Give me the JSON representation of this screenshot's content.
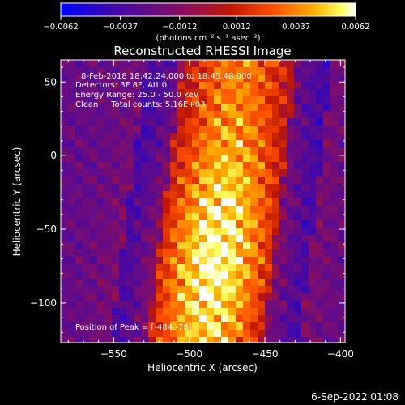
{
  "chart_data": {
    "type": "heatmap",
    "title": "Reconstructed RHESSI Image",
    "xlabel": "Heliocentric X (arcsec)",
    "ylabel": "Heliocentric Y (arcsec)",
    "xlim": [
      -585,
      -397
    ],
    "ylim": [
      -127,
      65
    ],
    "x_ticks": [
      -550,
      -500,
      -450,
      -400
    ],
    "x_tick_labels": [
      "−550",
      "−500",
      "−450",
      "−400"
    ],
    "y_ticks": [
      50,
      0,
      -50,
      -100
    ],
    "y_tick_labels": [
      "50",
      "0",
      "−50",
      "−100"
    ],
    "colorbar": {
      "ticks": [
        -0.0062,
        -0.0037,
        -0.0012,
        0.0012,
        0.0037,
        0.0062
      ],
      "tick_labels": [
        "−0.0062",
        "−0.0037",
        "−0.0012",
        "0.0012",
        "0.0037",
        "0.0062"
      ],
      "range": [
        -0.0062,
        0.0062
      ],
      "units": "(photons cm⁻² s⁻¹ asec⁻²)"
    },
    "annotations": [
      "8-Feb-2018 18:42:24.000 to 18:45:48.000",
      "Detectors: 3F 8F, Att 0",
      "Energy Range: 25.0 - 50.0 keV",
      "Clean     Total counts: 5.16E+03"
    ],
    "peak_label": "Position of Peak = [-484,-78]",
    "peak_marker": "+",
    "peak_position": [
      -484,
      -78
    ],
    "colors": {
      "background": "#000000",
      "text": "#ffffff",
      "colormap": [
        "#0000ff",
        "#4b0a8c",
        "#7a1060",
        "#b01800",
        "#ff4a00",
        "#ffb000",
        "#ffff80",
        "#ffffff"
      ]
    }
  },
  "footer": {
    "date": "6-Sep-2022 01:08"
  }
}
